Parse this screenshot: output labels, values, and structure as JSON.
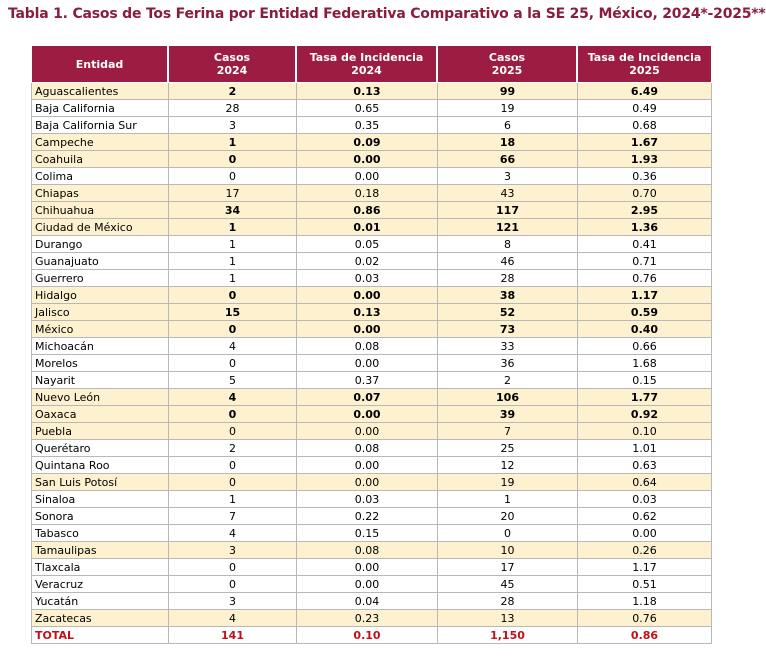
{
  "title": "Tabla 1. Casos de Tos Ferina por Entidad Federativa Comparativo a la SE 25, México, 2024*-2025**",
  "table": {
    "header": [
      [
        "Entidad"
      ],
      [
        "Casos",
        "2024"
      ],
      [
        "Tasa de Incidencia",
        "2024"
      ],
      [
        "Casos",
        "2025"
      ],
      [
        "Tasa de Incidencia",
        "2025"
      ]
    ],
    "rows": [
      [
        "Aguascalientes",
        "2",
        "0.13",
        "99",
        "6.49"
      ],
      [
        "Baja California",
        "28",
        "0.65",
        "19",
        "0.49"
      ],
      [
        "Baja California Sur",
        "3",
        "0.35",
        "6",
        "0.68"
      ],
      [
        "Campeche",
        "1",
        "0.09",
        "18",
        "1.67"
      ],
      [
        "Coahuila",
        "0",
        "0.00",
        "66",
        "1.93"
      ],
      [
        "Colima",
        "0",
        "0.00",
        "3",
        "0.36"
      ],
      [
        "Chiapas",
        "17",
        "0.18",
        "43",
        "0.70"
      ],
      [
        "Chihuahua",
        "34",
        "0.86",
        "117",
        "2.95"
      ],
      [
        "Ciudad de México",
        "1",
        "0.01",
        "121",
        "1.36"
      ],
      [
        "Durango",
        "1",
        "0.05",
        "8",
        "0.41"
      ],
      [
        "Guanajuato",
        "1",
        "0.02",
        "46",
        "0.71"
      ],
      [
        "Guerrero",
        "1",
        "0.03",
        "28",
        "0.76"
      ],
      [
        "Hidalgo",
        "0",
        "0.00",
        "38",
        "1.17"
      ],
      [
        "Jalisco",
        "15",
        "0.13",
        "52",
        "0.59"
      ],
      [
        "México",
        "0",
        "0.00",
        "73",
        "0.40"
      ],
      [
        "Michoacán",
        "4",
        "0.08",
        "33",
        "0.66"
      ],
      [
        "Morelos",
        "0",
        "0.00",
        "36",
        "1.68"
      ],
      [
        "Nayarit",
        "5",
        "0.37",
        "2",
        "0.15"
      ],
      [
        "Nuevo León",
        "4",
        "0.07",
        "106",
        "1.77"
      ],
      [
        "Oaxaca",
        "0",
        "0.00",
        "39",
        "0.92"
      ],
      [
        "Puebla",
        "0",
        "0.00",
        "7",
        "0.10"
      ],
      [
        "Querétaro",
        "2",
        "0.08",
        "25",
        "1.01"
      ],
      [
        "Quintana Roo",
        "0",
        "0.00",
        "12",
        "0.63"
      ],
      [
        "San Luis Potosí",
        "0",
        "0.00",
        "19",
        "0.64"
      ],
      [
        "Sinaloa",
        "1",
        "0.03",
        "1",
        "0.03"
      ],
      [
        "Sonora",
        "7",
        "0.22",
        "20",
        "0.62"
      ],
      [
        "Tabasco",
        "4",
        "0.15",
        "0",
        "0.00"
      ],
      [
        "Tamaulipas",
        "3",
        "0.08",
        "10",
        "0.26"
      ],
      [
        "Tlaxcala",
        "0",
        "0.00",
        "17",
        "1.17"
      ],
      [
        "Veracruz",
        "0",
        "0.00",
        "45",
        "0.51"
      ],
      [
        "Yucatán",
        "3",
        "0.04",
        "28",
        "1.18"
      ],
      [
        "Zacatecas",
        "4",
        "0.23",
        "13",
        "0.76"
      ]
    ],
    "total": [
      "TOTAL",
      "141",
      "0.10",
      "1,150",
      "0.86"
    ]
  }
}
